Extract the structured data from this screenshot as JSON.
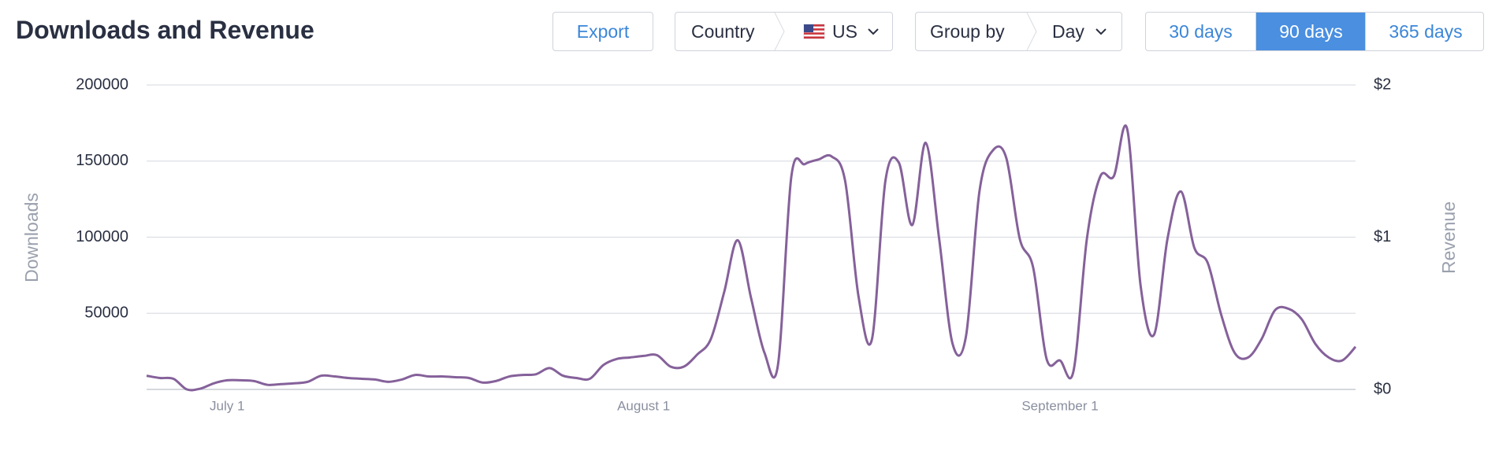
{
  "controls": {
    "export": "Export",
    "country_label": "Country",
    "country_value": "US",
    "group_label": "Group by",
    "group_value": "Day",
    "ranges": [
      "30 days",
      "90 days",
      "365 days"
    ],
    "active_range": 1
  },
  "chart_data": {
    "type": "line",
    "title": "Downloads and Revenue",
    "y_label": "Downloads",
    "y2_label": "Revenue",
    "categories": [
      null,
      null,
      null,
      null,
      null,
      null,
      "July 1",
      null,
      null,
      null,
      null,
      null,
      null,
      null,
      null,
      null,
      null,
      null,
      null,
      null,
      null,
      null,
      null,
      null,
      null,
      null,
      null,
      null,
      null,
      null,
      null,
      null,
      null,
      null,
      null,
      null,
      null,
      "August 1",
      null,
      null,
      null,
      null,
      null,
      null,
      null,
      null,
      null,
      null,
      null,
      null,
      null,
      null,
      null,
      null,
      null,
      null,
      null,
      null,
      null,
      null,
      null,
      null,
      null,
      null,
      null,
      null,
      null,
      null,
      "September 1",
      null,
      null,
      null,
      null,
      null,
      null,
      null,
      null,
      null,
      null,
      null,
      null,
      null,
      null,
      null,
      null,
      null,
      null,
      null,
      null,
      null,
      null
    ],
    "series": [
      {
        "color": "#85619a",
        "values": [
          9000,
          7500,
          7000,
          0,
          500,
          4000,
          6000,
          6000,
          5500,
          3000,
          3500,
          4000,
          5000,
          9000,
          8500,
          7500,
          7000,
          6500,
          5000,
          6500,
          9500,
          8500,
          8500,
          8000,
          7500,
          4500,
          5500,
          8500,
          9500,
          10000,
          14000,
          9000,
          7500,
          7000,
          16000,
          20000,
          21000,
          22000,
          22500,
          15000,
          15000,
          23000,
          33000,
          64000,
          98000,
          60000,
          24000,
          16000,
          140000,
          148000,
          151000,
          153000,
          137000,
          61000,
          33000,
          137000,
          149000,
          108000,
          162000,
          99000,
          30000,
          35000,
          130000,
          157000,
          152000,
          99000,
          80000,
          20000,
          19000,
          12000,
          99000,
          140000,
          140000,
          171000,
          68000,
          36000,
          99000,
          130000,
          93000,
          83000,
          49000,
          24000,
          21000,
          33000,
          52000,
          53000,
          46000,
          30000,
          21000,
          19000,
          28000
        ]
      }
    ],
    "ylim": [
      0,
      200000
    ],
    "yticks": [
      50000,
      100000,
      150000,
      200000
    ],
    "y2lim": [
      0,
      2
    ],
    "y2ticks": [
      {
        "value": 0,
        "label": "$0"
      },
      {
        "value": 1,
        "label": "$1"
      },
      {
        "value": 2,
        "label": "$2"
      }
    ],
    "grid": true
  }
}
